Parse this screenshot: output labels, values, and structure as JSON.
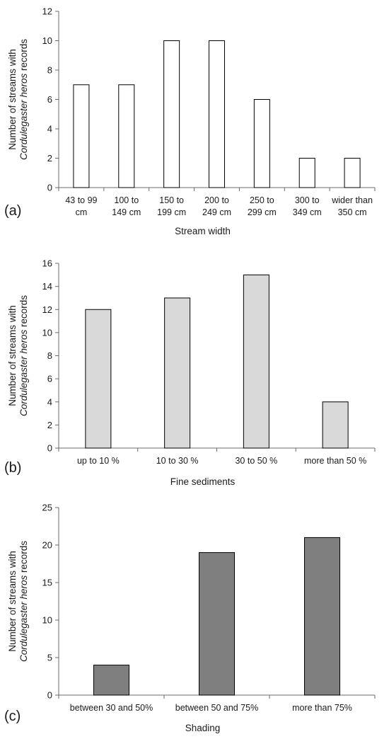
{
  "ylabel_prefix": "Number of streams with",
  "ylabel_species": "Cordulegaster heros",
  "ylabel_suffix": "records",
  "chart_data": [
    {
      "type": "bar",
      "panel_label": "(a)",
      "xlabel": "Stream width",
      "categories": [
        "43 to 99 cm",
        "100 to 149 cm",
        "150 to 199 cm",
        "200 to 249 cm",
        "250 to 299 cm",
        "300 to 349 cm",
        "wider than 350 cm"
      ],
      "category_lines": [
        [
          "43 to 99",
          "cm"
        ],
        [
          "100 to",
          "149 cm"
        ],
        [
          "150 to",
          "199 cm"
        ],
        [
          "200 to",
          "249 cm"
        ],
        [
          "250 to",
          "299 cm"
        ],
        [
          "300 to",
          "349 cm"
        ],
        [
          "wider than",
          "350 cm"
        ]
      ],
      "values": [
        7,
        7,
        10,
        10,
        6,
        2,
        2
      ],
      "ylim": [
        0,
        12
      ],
      "yticks": [
        0,
        2,
        4,
        6,
        8,
        10,
        12
      ],
      "bar_color": "#ffffff",
      "grid": false
    },
    {
      "type": "bar",
      "panel_label": "(b)",
      "xlabel": "Fine sediments",
      "categories": [
        "up to 10 %",
        "10 to 30 %",
        "30 to 50 %",
        "more than 50 %"
      ],
      "category_lines": [
        [
          "up to 10 %"
        ],
        [
          "10 to 30 %"
        ],
        [
          "30 to 50 %"
        ],
        [
          "more than 50 %"
        ]
      ],
      "values": [
        12,
        13,
        15,
        4
      ],
      "ylim": [
        0,
        16
      ],
      "yticks": [
        0,
        2,
        4,
        6,
        8,
        10,
        12,
        14,
        16
      ],
      "bar_color": "#d9d9d9",
      "grid": false
    },
    {
      "type": "bar",
      "panel_label": "(c)",
      "xlabel": "Shading",
      "categories": [
        "between 30 and 50%",
        "between 50 and 75%",
        "more than 75%"
      ],
      "category_lines": [
        [
          "between 30 and 50%"
        ],
        [
          "between 50 and 75%"
        ],
        [
          "more than 75%"
        ]
      ],
      "values": [
        4,
        19,
        21
      ],
      "ylim": [
        0,
        25
      ],
      "yticks": [
        0,
        5,
        10,
        15,
        20,
        25
      ],
      "bar_color": "#7f7f7f",
      "grid": false
    }
  ]
}
